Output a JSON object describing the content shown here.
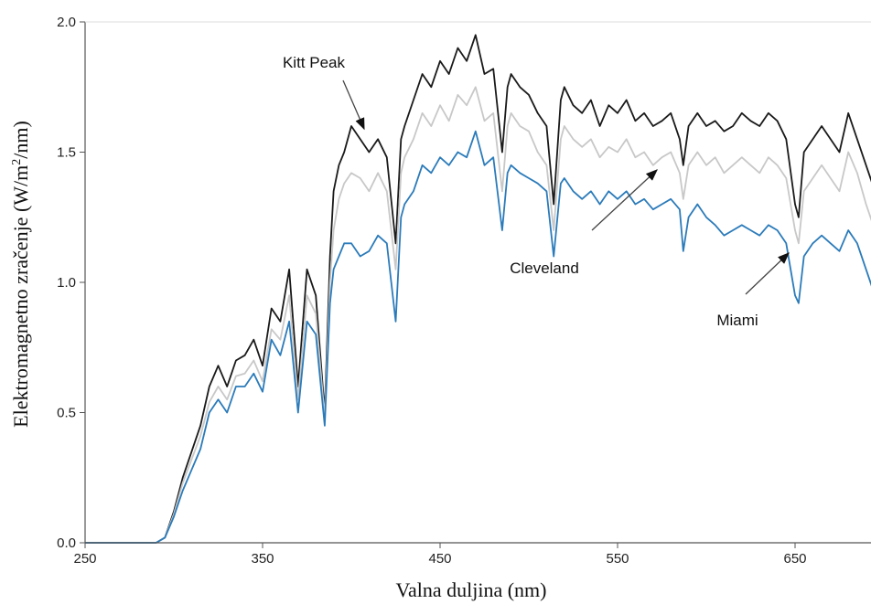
{
  "chart_data": {
    "type": "line",
    "xlabel": "Valna duljina (nm)",
    "ylabel": {
      "prefix": "Elektromagnetno zračenje  (W/m",
      "sup": "2",
      "suffix": "/nm)"
    },
    "xlim": [
      250,
      700
    ],
    "ylim": [
      0,
      2.0
    ],
    "x_ticks": [
      250,
      350,
      450,
      550,
      650
    ],
    "y_ticks": [
      {
        "value": 0.0,
        "label": "0.0"
      },
      {
        "value": 0.5,
        "label": "0.5"
      },
      {
        "value": 1.0,
        "label": "1.0"
      },
      {
        "value": 1.5,
        "label": "1.5"
      },
      {
        "value": 2.0,
        "label": "2.0"
      }
    ],
    "grid": false,
    "x": [
      250,
      290,
      295,
      300,
      305,
      310,
      315,
      320,
      325,
      330,
      335,
      340,
      345,
      350,
      355,
      360,
      365,
      370,
      375,
      380,
      385,
      388,
      390,
      393,
      396,
      400,
      405,
      410,
      415,
      420,
      425,
      428,
      430,
      435,
      440,
      445,
      450,
      455,
      460,
      465,
      470,
      475,
      480,
      485,
      488,
      490,
      495,
      500,
      505,
      510,
      514,
      518,
      520,
      525,
      530,
      535,
      540,
      545,
      550,
      555,
      560,
      565,
      570,
      575,
      580,
      585,
      587,
      590,
      595,
      600,
      605,
      610,
      615,
      620,
      625,
      630,
      635,
      640,
      645,
      650,
      652,
      655,
      660,
      665,
      670,
      675,
      680,
      685,
      690,
      695,
      700
    ],
    "series": [
      {
        "name": "Kitt Peak",
        "color": "#1a1a1a",
        "values": [
          0.0,
          0.0,
          0.02,
          0.12,
          0.25,
          0.35,
          0.45,
          0.6,
          0.68,
          0.6,
          0.7,
          0.72,
          0.78,
          0.68,
          0.9,
          0.85,
          1.05,
          0.6,
          1.05,
          0.95,
          0.5,
          1.1,
          1.35,
          1.45,
          1.5,
          1.6,
          1.55,
          1.5,
          1.55,
          1.48,
          1.15,
          1.55,
          1.6,
          1.7,
          1.8,
          1.75,
          1.85,
          1.8,
          1.9,
          1.85,
          1.95,
          1.8,
          1.82,
          1.5,
          1.75,
          1.8,
          1.75,
          1.72,
          1.65,
          1.6,
          1.3,
          1.7,
          1.75,
          1.68,
          1.65,
          1.7,
          1.6,
          1.68,
          1.65,
          1.7,
          1.62,
          1.65,
          1.6,
          1.62,
          1.65,
          1.55,
          1.45,
          1.6,
          1.65,
          1.6,
          1.62,
          1.58,
          1.6,
          1.65,
          1.62,
          1.6,
          1.65,
          1.62,
          1.55,
          1.3,
          1.25,
          1.5,
          1.55,
          1.6,
          1.55,
          1.5,
          1.65,
          1.55,
          1.45,
          1.35,
          1.4
        ]
      },
      {
        "name": "Cleveland",
        "color": "#c8c8c8",
        "values": [
          0.0,
          0.0,
          0.02,
          0.11,
          0.23,
          0.32,
          0.41,
          0.54,
          0.6,
          0.55,
          0.64,
          0.65,
          0.7,
          0.62,
          0.82,
          0.78,
          0.95,
          0.55,
          0.95,
          0.88,
          0.48,
          1.0,
          1.2,
          1.32,
          1.38,
          1.42,
          1.4,
          1.35,
          1.42,
          1.35,
          1.05,
          1.42,
          1.48,
          1.55,
          1.65,
          1.6,
          1.68,
          1.62,
          1.72,
          1.68,
          1.75,
          1.62,
          1.65,
          1.35,
          1.6,
          1.65,
          1.6,
          1.58,
          1.5,
          1.45,
          1.2,
          1.55,
          1.6,
          1.55,
          1.52,
          1.55,
          1.48,
          1.52,
          1.5,
          1.55,
          1.48,
          1.5,
          1.45,
          1.48,
          1.5,
          1.42,
          1.32,
          1.45,
          1.5,
          1.45,
          1.48,
          1.42,
          1.45,
          1.48,
          1.45,
          1.42,
          1.48,
          1.45,
          1.4,
          1.2,
          1.15,
          1.35,
          1.4,
          1.45,
          1.4,
          1.35,
          1.5,
          1.42,
          1.3,
          1.2,
          1.25
        ]
      },
      {
        "name": "Miami",
        "color": "#2b7bba",
        "values": [
          0.0,
          0.0,
          0.02,
          0.1,
          0.2,
          0.28,
          0.36,
          0.5,
          0.55,
          0.5,
          0.6,
          0.6,
          0.65,
          0.58,
          0.78,
          0.72,
          0.85,
          0.5,
          0.85,
          0.8,
          0.45,
          0.92,
          1.05,
          1.1,
          1.15,
          1.15,
          1.1,
          1.12,
          1.18,
          1.15,
          0.85,
          1.25,
          1.3,
          1.35,
          1.45,
          1.42,
          1.48,
          1.45,
          1.5,
          1.48,
          1.58,
          1.45,
          1.48,
          1.2,
          1.42,
          1.45,
          1.42,
          1.4,
          1.38,
          1.35,
          1.1,
          1.38,
          1.4,
          1.35,
          1.32,
          1.35,
          1.3,
          1.35,
          1.32,
          1.35,
          1.3,
          1.32,
          1.28,
          1.3,
          1.32,
          1.28,
          1.12,
          1.25,
          1.3,
          1.25,
          1.22,
          1.18,
          1.2,
          1.22,
          1.2,
          1.18,
          1.22,
          1.2,
          1.15,
          0.95,
          0.92,
          1.1,
          1.15,
          1.18,
          1.15,
          1.12,
          1.2,
          1.15,
          1.05,
          0.95,
          0.95
        ]
      }
    ],
    "annotations": [
      {
        "text": "Kitt Peak",
        "series": "Kitt Peak"
      },
      {
        "text": "Cleveland",
        "series": "Cleveland"
      },
      {
        "text": "Miami",
        "series": "Miami"
      }
    ]
  }
}
